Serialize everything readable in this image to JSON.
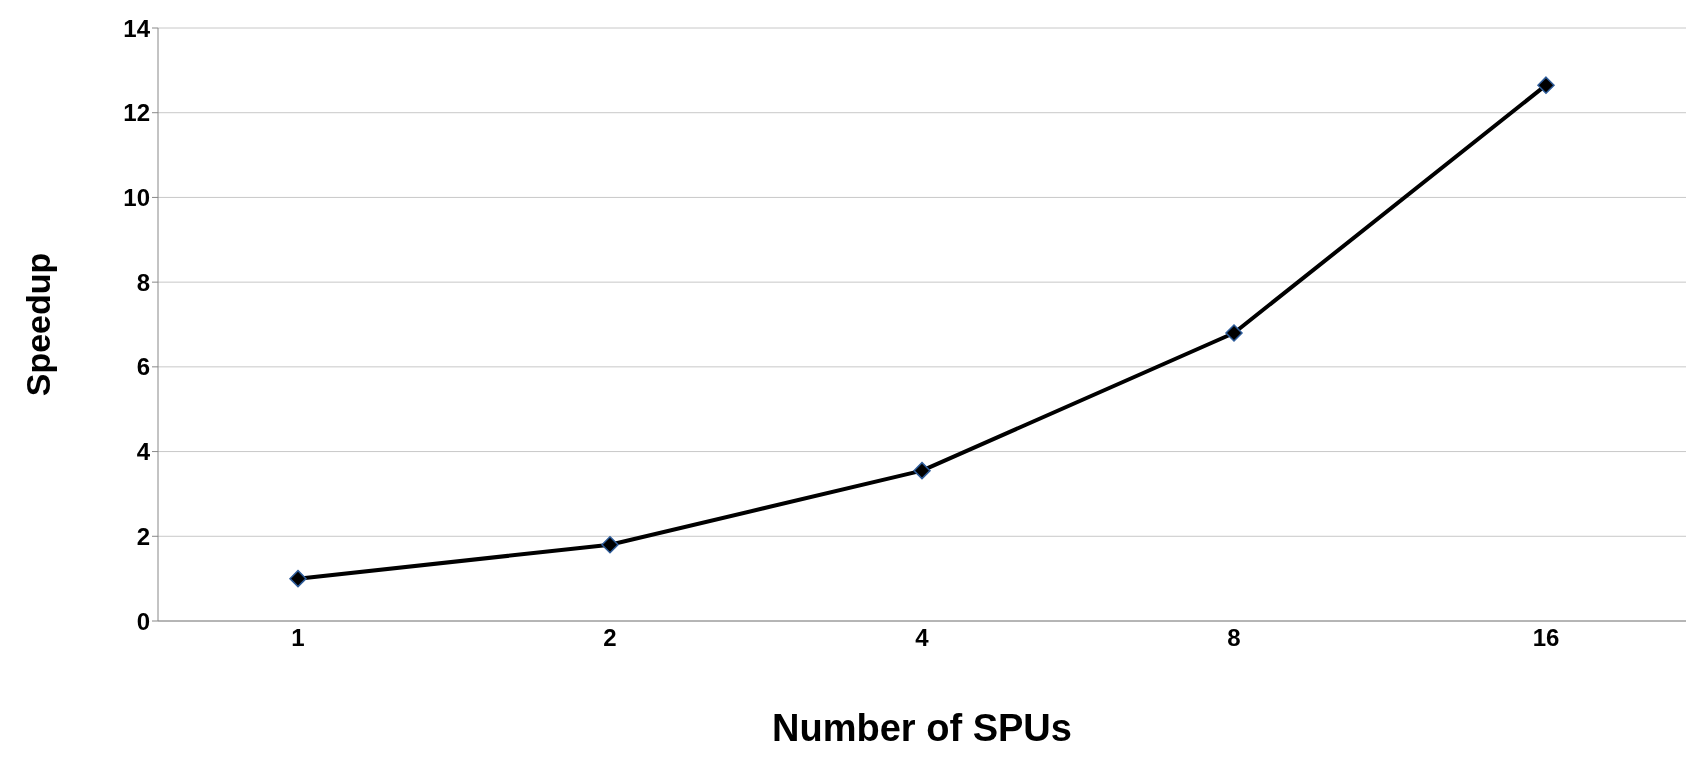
{
  "chart_data": {
    "type": "line",
    "xlabel": "Number of SPUs",
    "ylabel": "Speedup",
    "categories": [
      "1",
      "2",
      "4",
      "8",
      "16"
    ],
    "series": [
      {
        "color": "#000000",
        "values": [
          1.0,
          1.8,
          3.55,
          6.8,
          12.65
        ]
      }
    ],
    "ylim": [
      0,
      14
    ],
    "yticks": [
      0,
      2,
      4,
      6,
      8,
      10,
      12,
      14
    ],
    "grid": "y",
    "legend": false,
    "marker": "diamond",
    "line_style": "solid"
  }
}
